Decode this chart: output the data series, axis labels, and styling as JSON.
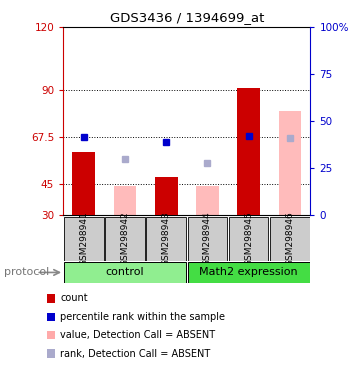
{
  "title": "GDS3436 / 1394699_at",
  "samples": [
    "GSM298941",
    "GSM298942",
    "GSM298943",
    "GSM298944",
    "GSM298945",
    "GSM298946"
  ],
  "x_positions": [
    1,
    2,
    3,
    4,
    5,
    6
  ],
  "red_bars": {
    "indices": [
      0,
      2,
      4
    ],
    "values": [
      60,
      48,
      91
    ]
  },
  "pink_bars": {
    "indices": [
      1,
      3,
      5
    ],
    "values": [
      44,
      44,
      80
    ]
  },
  "blue_squares": {
    "indices": [
      0,
      2,
      4
    ],
    "values": [
      67.5,
      65,
      68
    ]
  },
  "lightblue_squares": {
    "indices": [
      1,
      3,
      5
    ],
    "values": [
      57,
      55,
      67
    ]
  },
  "ylim": [
    30,
    120
  ],
  "yticks_left": [
    30,
    45,
    67.5,
    90,
    120
  ],
  "yticks_right": [
    0,
    25,
    50,
    75,
    100
  ],
  "ytick_right_labels": [
    "0",
    "25",
    "50",
    "75",
    "100%"
  ],
  "hlines": [
    45,
    67.5,
    90
  ],
  "control_label": "control",
  "math2_label": "Math2 expression",
  "protocol_label": "protocol",
  "legend_items": [
    "count",
    "percentile rank within the sample",
    "value, Detection Call = ABSENT",
    "rank, Detection Call = ABSENT"
  ],
  "legend_colors": [
    "#cc0000",
    "#0000cc",
    "#ffaaaa",
    "#aaaacc"
  ],
  "bar_bottom": 30,
  "left_axis_color": "#cc0000",
  "right_axis_color": "#0000cc",
  "control_bg": "#90ee90",
  "math2_bg": "#44dd44",
  "sample_bg": "#cccccc"
}
